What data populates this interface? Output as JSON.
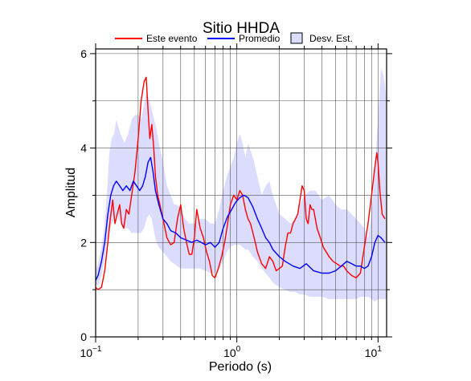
{
  "chart_data": {
    "type": "line",
    "title": "Sitio HHDA",
    "xlabel": "Periodo (s)",
    "ylabel": "Amplitud",
    "x_scale": "log",
    "xlim": [
      0.1,
      11.5
    ],
    "ylim": [
      0,
      6.1
    ],
    "grid": true,
    "legend_position": "top",
    "x_ticks": [
      {
        "value": 0.1,
        "base": "10",
        "exp": "−1"
      },
      {
        "value": 1,
        "base": "10",
        "exp": "0"
      },
      {
        "value": 10,
        "base": "10",
        "exp": "1"
      }
    ],
    "y_ticks": [
      0,
      2,
      4,
      6
    ],
    "legend": [
      {
        "label": "Este evento",
        "color": "#ff0000",
        "kind": "line"
      },
      {
        "label": "Promedio",
        "color": "#0000ff",
        "kind": "line"
      },
      {
        "label": "Desv. Est.",
        "color": "#dcdcff",
        "kind": "box"
      }
    ],
    "series": [
      {
        "name": "Este evento",
        "color": "#ff0000",
        "x": [
          0.1,
          0.104,
          0.11,
          0.116,
          0.122,
          0.127,
          0.132,
          0.137,
          0.142,
          0.148,
          0.153,
          0.158,
          0.165,
          0.172,
          0.18,
          0.19,
          0.2,
          0.21,
          0.22,
          0.228,
          0.235,
          0.242,
          0.25,
          0.258,
          0.265,
          0.275,
          0.285,
          0.3,
          0.32,
          0.34,
          0.36,
          0.38,
          0.4,
          0.42,
          0.44,
          0.46,
          0.48,
          0.5,
          0.52,
          0.55,
          0.58,
          0.61,
          0.64,
          0.67,
          0.7,
          0.74,
          0.78,
          0.82,
          0.86,
          0.9,
          0.95,
          1.0,
          1.05,
          1.1,
          1.15,
          1.2,
          1.25,
          1.3,
          1.35,
          1.4,
          1.5,
          1.6,
          1.7,
          1.8,
          1.9,
          2.0,
          2.1,
          2.2,
          2.3,
          2.4,
          2.5,
          2.6,
          2.7,
          2.8,
          2.9,
          3.0,
          3.1,
          3.2,
          3.3,
          3.4,
          3.5,
          3.7,
          3.9,
          4.1,
          4.3,
          4.5,
          4.8,
          5.1,
          5.4,
          5.7,
          6.0,
          6.5,
          7.0,
          7.5,
          8.0,
          8.5,
          9.0,
          9.5,
          9.8,
          10.0,
          10.3,
          10.7,
          11.2
        ],
        "y": [
          1.05,
          1.0,
          1.05,
          1.4,
          2.0,
          2.5,
          2.9,
          2.4,
          2.6,
          2.8,
          2.4,
          2.3,
          2.7,
          2.6,
          3.0,
          3.5,
          4.2,
          5.0,
          5.4,
          5.5,
          4.8,
          4.2,
          4.5,
          4.0,
          3.4,
          3.0,
          2.8,
          2.5,
          2.1,
          1.95,
          2.0,
          2.5,
          2.8,
          2.3,
          2.0,
          1.75,
          1.75,
          2.1,
          2.7,
          2.3,
          2.1,
          1.8,
          1.6,
          1.3,
          1.25,
          1.45,
          1.7,
          2.0,
          2.4,
          2.8,
          3.0,
          2.9,
          3.1,
          3.0,
          2.7,
          2.5,
          2.4,
          2.2,
          2.0,
          1.8,
          1.55,
          1.45,
          1.7,
          1.6,
          1.4,
          1.45,
          1.5,
          1.9,
          2.2,
          2.2,
          2.4,
          2.5,
          2.6,
          2.9,
          3.2,
          3.1,
          2.5,
          2.4,
          2.8,
          2.7,
          2.7,
          2.3,
          2.1,
          1.9,
          1.8,
          1.7,
          1.6,
          1.55,
          1.5,
          1.5,
          1.4,
          1.3,
          1.25,
          1.35,
          1.9,
          2.4,
          3.0,
          3.6,
          3.9,
          3.7,
          3.1,
          2.6,
          2.5
        ]
      },
      {
        "name": "Promedio",
        "color": "#0000ff",
        "x": [
          0.1,
          0.104,
          0.11,
          0.116,
          0.122,
          0.128,
          0.134,
          0.14,
          0.148,
          0.156,
          0.165,
          0.175,
          0.185,
          0.195,
          0.205,
          0.215,
          0.225,
          0.235,
          0.245,
          0.255,
          0.265,
          0.28,
          0.3,
          0.32,
          0.34,
          0.37,
          0.4,
          0.44,
          0.48,
          0.52,
          0.56,
          0.6,
          0.65,
          0.7,
          0.75,
          0.8,
          0.86,
          0.92,
          0.98,
          1.05,
          1.12,
          1.2,
          1.3,
          1.4,
          1.5,
          1.6,
          1.7,
          1.8,
          2.0,
          2.2,
          2.5,
          2.8,
          3.1,
          3.5,
          4.0,
          4.5,
          5.0,
          5.5,
          6.0,
          6.5,
          7.0,
          7.5,
          8.0,
          8.5,
          9.0,
          9.5,
          10.0,
          10.5,
          11.2
        ],
        "y": [
          1.2,
          1.3,
          1.6,
          2.0,
          2.6,
          3.0,
          3.2,
          3.3,
          3.2,
          3.1,
          3.2,
          3.1,
          3.3,
          3.2,
          3.1,
          3.2,
          3.4,
          3.7,
          3.8,
          3.5,
          3.1,
          2.8,
          2.5,
          2.4,
          2.25,
          2.2,
          2.1,
          2.05,
          2.0,
          2.05,
          2.0,
          1.95,
          2.0,
          1.9,
          2.0,
          2.3,
          2.55,
          2.7,
          2.85,
          2.95,
          3.0,
          2.95,
          2.75,
          2.5,
          2.3,
          2.1,
          2.0,
          1.85,
          1.7,
          1.6,
          1.5,
          1.45,
          1.55,
          1.4,
          1.35,
          1.35,
          1.4,
          1.5,
          1.6,
          1.55,
          1.5,
          1.5,
          1.45,
          1.5,
          1.7,
          2.0,
          2.15,
          2.1,
          2.0
        ]
      }
    ],
    "band": {
      "name": "Desv. Est.",
      "color": "#dcdcff",
      "x": [
        0.1,
        0.105,
        0.11,
        0.115,
        0.12,
        0.125,
        0.13,
        0.135,
        0.14,
        0.15,
        0.16,
        0.17,
        0.18,
        0.19,
        0.2,
        0.21,
        0.22,
        0.23,
        0.24,
        0.25,
        0.26,
        0.27,
        0.28,
        0.3,
        0.32,
        0.34,
        0.36,
        0.38,
        0.4,
        0.43,
        0.46,
        0.5,
        0.55,
        0.6,
        0.65,
        0.7,
        0.75,
        0.8,
        0.85,
        0.9,
        0.95,
        1.0,
        1.05,
        1.1,
        1.15,
        1.2,
        1.3,
        1.4,
        1.5,
        1.6,
        1.7,
        1.8,
        1.9,
        2.0,
        2.2,
        2.4,
        2.6,
        2.8,
        3.0,
        3.3,
        3.6,
        4.0,
        4.5,
        5.0,
        5.5,
        6.0,
        6.5,
        7.0,
        7.5,
        8.0,
        8.5,
        9.0,
        9.5,
        10.0,
        10.5,
        11.0,
        11.5
      ],
      "upper": [
        1.4,
        1.6,
        1.9,
        2.3,
        3.0,
        3.9,
        4.2,
        4.3,
        4.6,
        4.3,
        4.1,
        4.3,
        4.6,
        4.7,
        4.7,
        4.6,
        4.9,
        5.2,
        5.0,
        4.8,
        4.6,
        4.4,
        4.1,
        3.7,
        3.2,
        3.0,
        2.8,
        2.8,
        2.7,
        2.5,
        2.4,
        2.4,
        2.5,
        2.5,
        2.4,
        2.4,
        2.7,
        3.1,
        3.4,
        3.6,
        3.8,
        4.1,
        4.3,
        4.1,
        3.8,
        4.1,
        3.8,
        3.4,
        3.0,
        3.2,
        3.3,
        3.0,
        2.8,
        2.6,
        2.5,
        2.4,
        2.5,
        2.8,
        3.0,
        3.1,
        3.1,
        2.9,
        3.0,
        2.8,
        2.7,
        2.7,
        2.6,
        2.5,
        2.4,
        2.3,
        2.1,
        2.6,
        3.6,
        4.6,
        5.7,
        5.5,
        5.0
      ],
      "lower": [
        1.1,
        1.1,
        1.3,
        1.6,
        2.0,
        2.3,
        2.4,
        2.5,
        2.6,
        2.4,
        2.3,
        2.3,
        2.2,
        2.2,
        2.2,
        2.2,
        2.3,
        2.5,
        2.6,
        2.5,
        2.2,
        2.0,
        1.9,
        1.8,
        1.7,
        1.6,
        1.55,
        1.5,
        1.45,
        1.45,
        1.45,
        1.45,
        1.45,
        1.4,
        1.35,
        1.35,
        1.45,
        1.6,
        1.8,
        1.9,
        1.95,
        1.95,
        1.95,
        1.9,
        1.85,
        1.85,
        1.7,
        1.6,
        1.45,
        1.35,
        1.25,
        1.15,
        1.1,
        1.05,
        1.0,
        0.95,
        0.95,
        0.9,
        0.9,
        0.85,
        0.85,
        0.85,
        0.8,
        0.8,
        0.8,
        0.8,
        0.8,
        0.8,
        0.85,
        0.85,
        0.85,
        0.8,
        0.75,
        0.8,
        0.8,
        0.8,
        0.8
      ]
    }
  }
}
